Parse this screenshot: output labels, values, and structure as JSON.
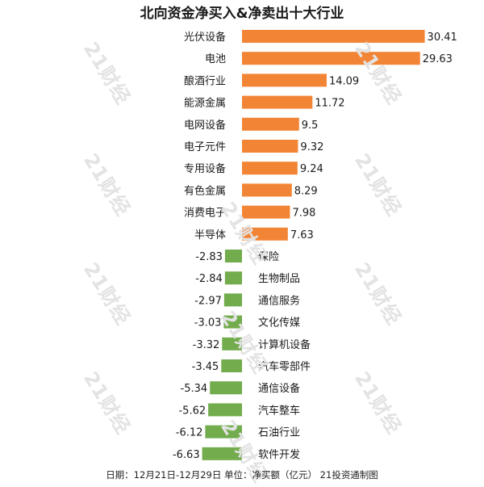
{
  "watermark": "21财经",
  "chart_data": {
    "type": "bar",
    "orientation": "horizontal",
    "title": "北向资金净买入&净卖出十大行业",
    "note": "日期：12月21日-12月29日 单位：净买额（亿元） 21投资通制图",
    "categories": [
      "光伏设备",
      "电池",
      "酿酒行业",
      "能源金属",
      "电网设备",
      "电子元件",
      "专用设备",
      "有色金属",
      "消费电子",
      "半导体",
      "保险",
      "生物制品",
      "通信服务",
      "文化传媒",
      "计算机设备",
      "汽车零部件",
      "通信设备",
      "汽车整车",
      "石油行业",
      "软件开发"
    ],
    "values": [
      30.41,
      29.63,
      14.09,
      11.72,
      9.5,
      9.32,
      9.24,
      8.29,
      7.98,
      7.63,
      -2.83,
      -2.84,
      -2.97,
      -3.03,
      -3.32,
      -3.45,
      -5.34,
      -5.62,
      -6.12,
      -6.63
    ],
    "value_labels": [
      "30.41",
      "29.63",
      "14.09",
      "11.72",
      "9.5",
      "9.32",
      "9.24",
      "8.29",
      "7.98",
      "7.63",
      "-2.83",
      "-2.84",
      "-2.97",
      "-3.03",
      "-3.32",
      "-3.45",
      "-5.34",
      "-5.62",
      "-6.12",
      "-6.63"
    ],
    "colors": {
      "positive": "#f28535",
      "negative": "#72ac4d"
    },
    "grid": false,
    "legend": "none"
  }
}
